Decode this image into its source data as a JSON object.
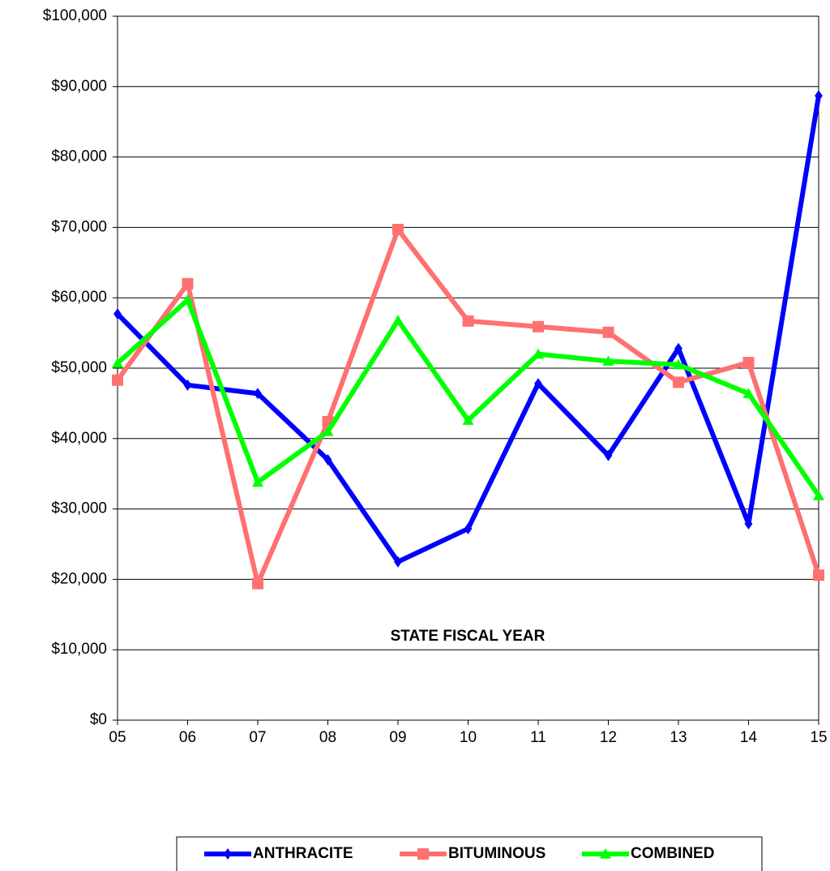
{
  "chart_data": {
    "type": "line",
    "x_label": "STATE FISCAL YEAR",
    "categories": [
      "05",
      "06",
      "07",
      "08",
      "09",
      "10",
      "11",
      "12",
      "13",
      "14",
      "15"
    ],
    "series": [
      {
        "name": "ANTHRACITE",
        "color": "#0000ff",
        "marker": "diamond",
        "values": [
          57700,
          47600,
          46400,
          37000,
          22500,
          27200,
          47800,
          37600,
          52800,
          27900,
          88700
        ]
      },
      {
        "name": "BITUMINOUS",
        "color": "#ff7070",
        "marker": "square",
        "values": [
          48300,
          62000,
          19400,
          42400,
          69700,
          56700,
          55900,
          55100,
          48000,
          50800,
          20600
        ]
      },
      {
        "name": "COMBINED",
        "color": "#00ff00",
        "marker": "triangle",
        "values": [
          50700,
          59700,
          33800,
          41000,
          56800,
          42600,
          52000,
          51000,
          50500,
          46400,
          31900
        ]
      }
    ],
    "ylim": [
      0,
      100000
    ],
    "yticks": [
      {
        "value": 0,
        "label": "$0"
      },
      {
        "value": 10000,
        "label": "$10,000"
      },
      {
        "value": 20000,
        "label": "$20,000"
      },
      {
        "value": 30000,
        "label": "$30,000"
      },
      {
        "value": 40000,
        "label": "$40,000"
      },
      {
        "value": 50000,
        "label": "$50,000"
      },
      {
        "value": 60000,
        "label": "$60,000"
      },
      {
        "value": 70000,
        "label": "$70,000"
      },
      {
        "value": 80000,
        "label": "$80,000"
      },
      {
        "value": 90000,
        "label": "$90,000"
      },
      {
        "value": 100000,
        "label": "$100,000"
      }
    ],
    "grid": true,
    "legend": "bottom"
  }
}
